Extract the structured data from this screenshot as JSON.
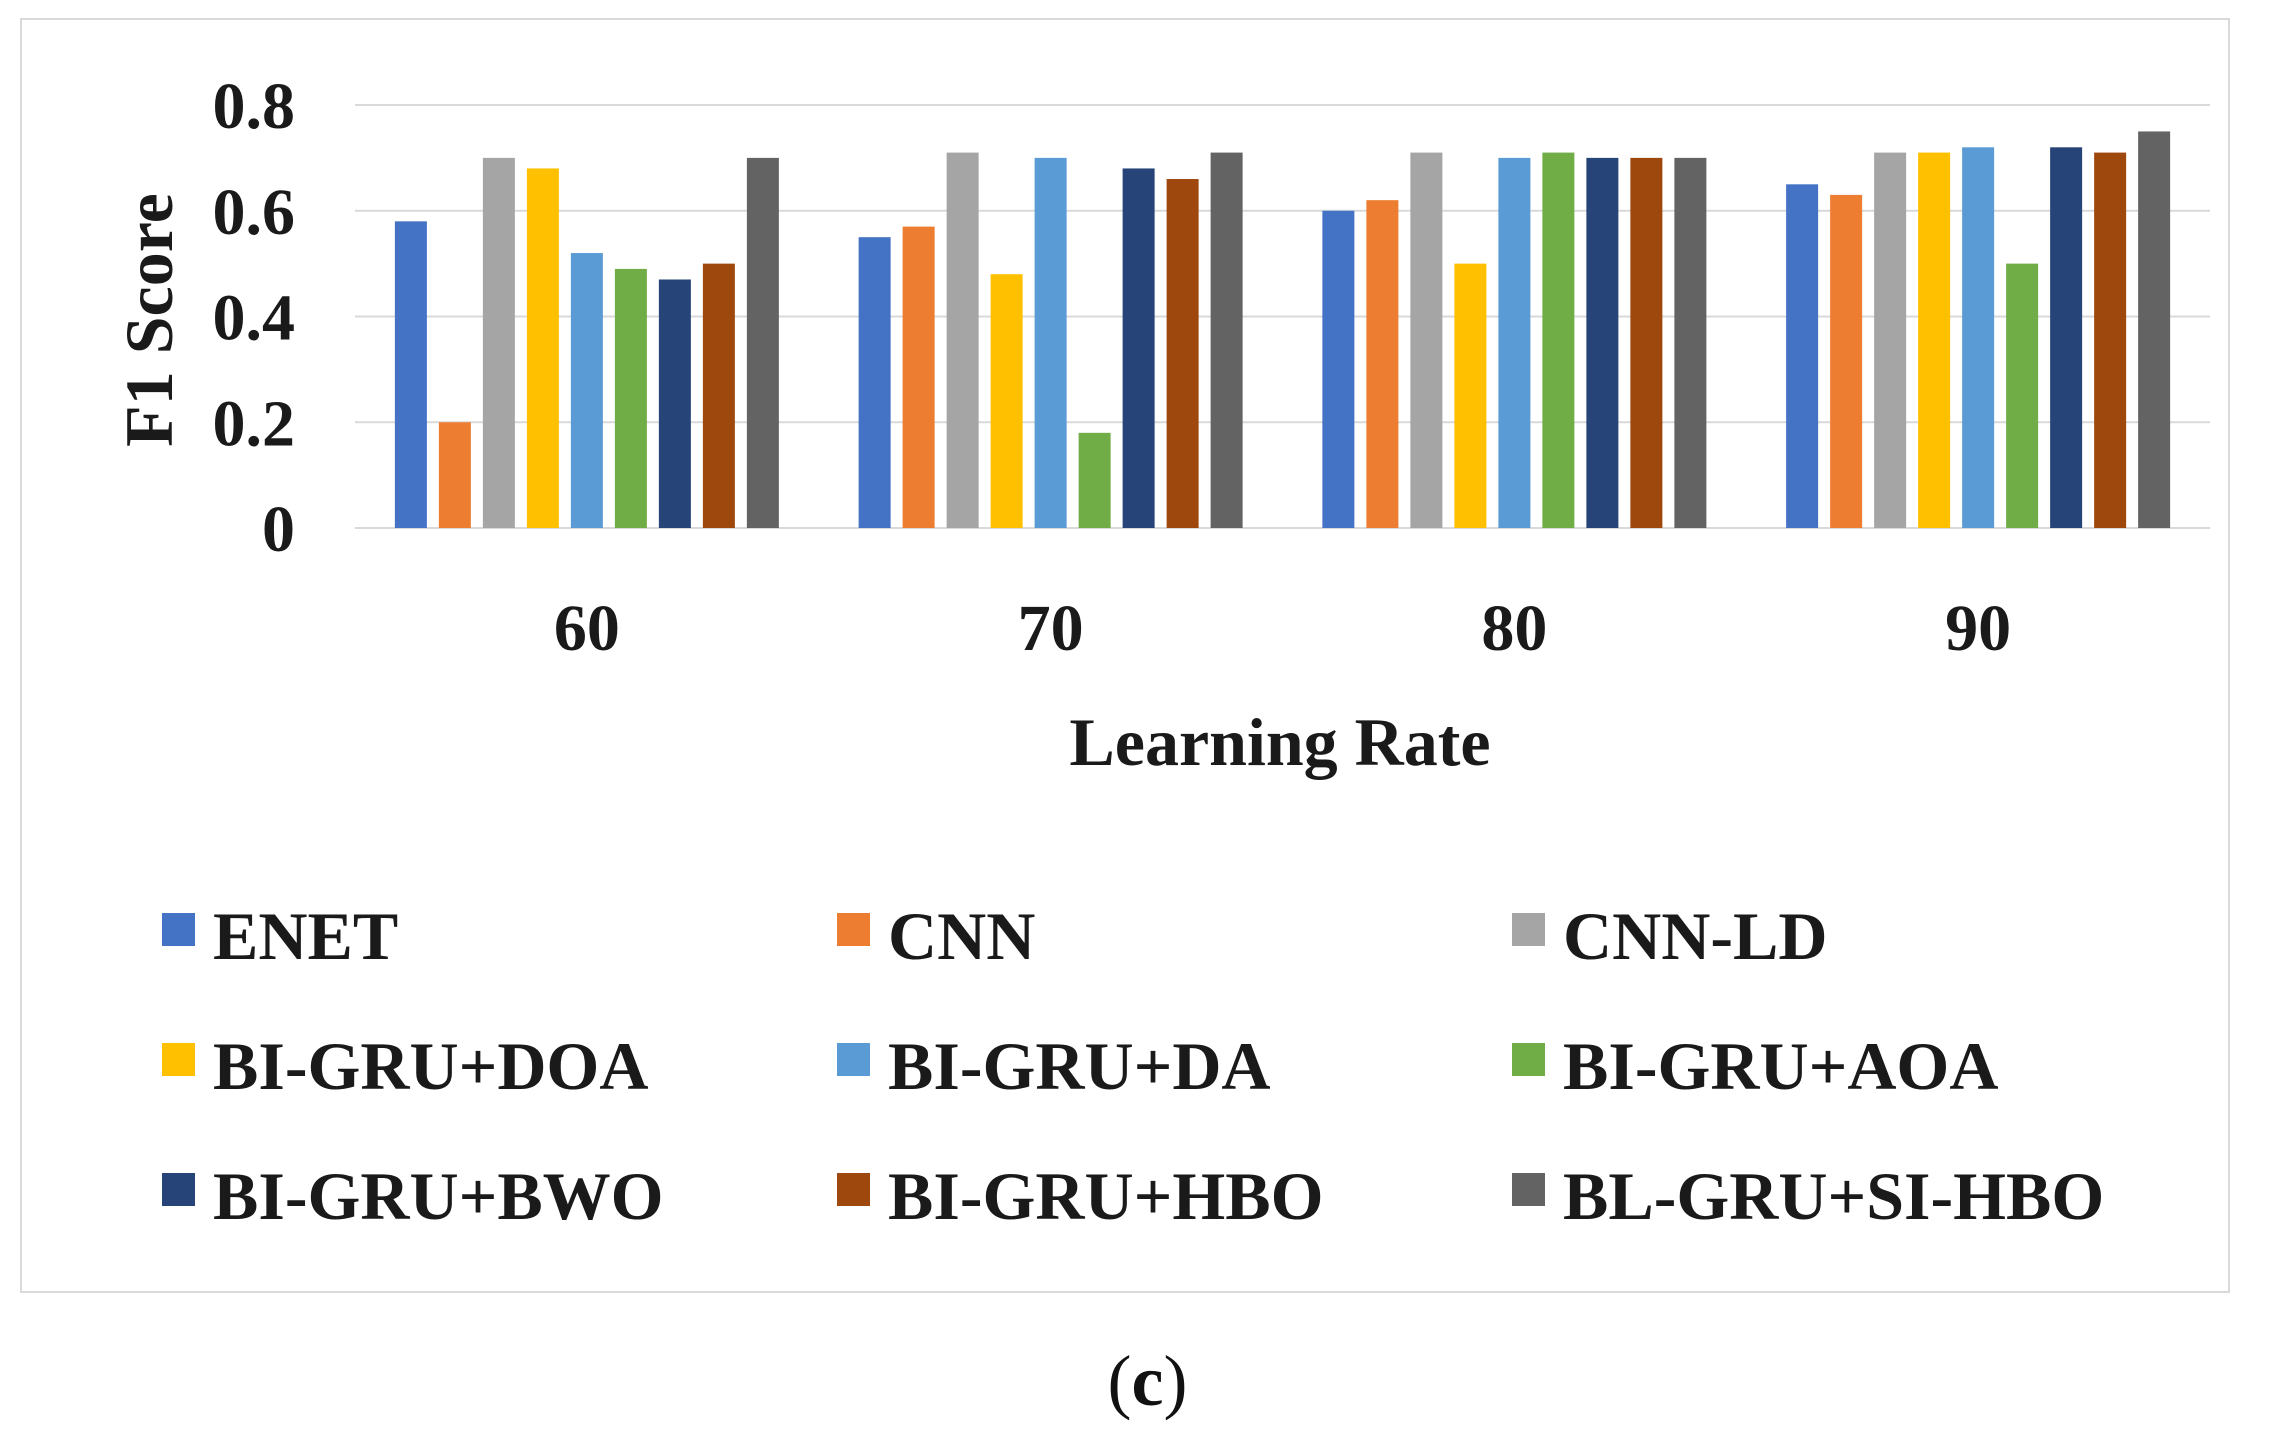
{
  "chart_data": {
    "type": "bar",
    "title": "",
    "xlabel": "Learning Rate",
    "ylabel": "F1 Score",
    "ylim": [
      0,
      0.8
    ],
    "yticks": [
      "0",
      "0.2",
      "0.4",
      "0.6",
      "0.8"
    ],
    "ytick_values": [
      0,
      0.2,
      0.4,
      0.6,
      0.8
    ],
    "categories": [
      "60",
      "70",
      "80",
      "90"
    ],
    "grid": true,
    "legend_position": "bottom",
    "series": [
      {
        "name": "ENET",
        "color": "#4472C4",
        "values": [
          0.58,
          0.55,
          0.6,
          0.65
        ]
      },
      {
        "name": "CNN",
        "color": "#ED7D31",
        "values": [
          0.2,
          0.57,
          0.62,
          0.63
        ]
      },
      {
        "name": "CNN-LD",
        "color": "#A5A5A5",
        "values": [
          0.7,
          0.71,
          0.71,
          0.71
        ]
      },
      {
        "name": "BI-GRU+DOA",
        "color": "#FFC000",
        "values": [
          0.68,
          0.48,
          0.5,
          0.71
        ]
      },
      {
        "name": "BI-GRU+DA",
        "color": "#5B9BD5",
        "values": [
          0.52,
          0.7,
          0.7,
          0.72
        ]
      },
      {
        "name": "BI-GRU+AOA",
        "color": "#70AD47",
        "values": [
          0.49,
          0.18,
          0.71,
          0.5
        ]
      },
      {
        "name": "BI-GRU+BWO",
        "color": "#264478",
        "values": [
          0.47,
          0.68,
          0.7,
          0.72
        ]
      },
      {
        "name": "BI-GRU+HBO",
        "color": "#9E480E",
        "values": [
          0.5,
          0.66,
          0.7,
          0.71
        ]
      },
      {
        "name": "BL-GRU+SI-HBO",
        "color": "#636363",
        "values": [
          0.7,
          0.71,
          0.7,
          0.75
        ]
      }
    ]
  },
  "caption": {
    "open": "(",
    "letter": "c",
    "close": ")"
  }
}
